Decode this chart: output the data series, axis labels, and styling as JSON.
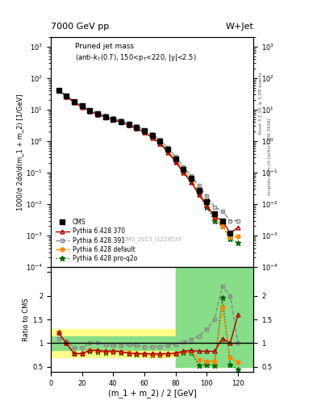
{
  "title_top": "7000 GeV pp",
  "title_top_right": "W+Jet",
  "inner_title": "Pruned jet mass",
  "inner_title2": "(anti-k_{T}(0.7), 150<p_{T}<220, |y|<2.5)",
  "xlabel": "(m_1 + m_2) / 2 [GeV]",
  "ylabel_main": "1000/σ 2dσ/d(m_1 + m_2) [1/GeV]",
  "ylabel_ratio": "Ratio to CMS",
  "watermark": "CMS_2013_I1224539",
  "rivet_label": "Rivet 3.1.10, ≥ 3.2M events",
  "arxiv_label": "mcplots.cern.ch [arXiv:1306.3436]",
  "cms_x": [
    5,
    10,
    15,
    20,
    25,
    30,
    35,
    40,
    45,
    50,
    55,
    60,
    65,
    70,
    75,
    80,
    85,
    90,
    95,
    100,
    105,
    110,
    115
  ],
  "cms_y": [
    42,
    27,
    18,
    13,
    9.5,
    7.5,
    6.0,
    5.0,
    4.2,
    3.5,
    2.8,
    2.1,
    1.5,
    1.0,
    0.55,
    0.28,
    0.13,
    0.065,
    0.028,
    0.012,
    0.005,
    0.003,
    0.0012
  ],
  "py370_x": [
    5,
    10,
    15,
    20,
    25,
    30,
    35,
    40,
    45,
    50,
    55,
    60,
    65,
    70,
    75,
    80,
    85,
    90,
    95,
    100,
    105,
    110,
    115,
    120
  ],
  "py370_y": [
    42,
    26,
    17,
    12,
    9.0,
    7.0,
    5.8,
    4.8,
    4.0,
    3.2,
    2.5,
    1.9,
    1.3,
    0.85,
    0.45,
    0.22,
    0.1,
    0.05,
    0.02,
    0.009,
    0.004,
    0.003,
    0.0012,
    0.0018
  ],
  "py391_x": [
    5,
    10,
    15,
    20,
    25,
    30,
    35,
    40,
    45,
    50,
    55,
    60,
    65,
    70,
    75,
    80,
    85,
    90,
    95,
    100,
    105,
    110,
    115,
    120
  ],
  "py391_y": [
    42,
    28,
    18.5,
    13.5,
    10.0,
    8.0,
    6.5,
    5.5,
    4.5,
    3.7,
    3.0,
    2.3,
    1.65,
    1.1,
    0.62,
    0.32,
    0.155,
    0.08,
    0.038,
    0.018,
    0.008,
    0.006,
    0.003,
    0.003
  ],
  "pydef_x": [
    5,
    10,
    15,
    20,
    25,
    30,
    35,
    40,
    45,
    50,
    55,
    60,
    65,
    70,
    75,
    80,
    85,
    90,
    95,
    100,
    105,
    110,
    115,
    120
  ],
  "pydef_y": [
    42,
    27,
    18,
    12.5,
    9.2,
    7.2,
    5.9,
    4.9,
    4.1,
    3.3,
    2.6,
    1.95,
    1.4,
    0.9,
    0.5,
    0.25,
    0.12,
    0.06,
    0.025,
    0.01,
    0.004,
    0.002,
    0.0009,
    0.00095
  ],
  "pyq2o_x": [
    5,
    10,
    15,
    20,
    25,
    30,
    35,
    40,
    45,
    50,
    55,
    60,
    65,
    70,
    75,
    80,
    85,
    90,
    95,
    100,
    105,
    110,
    115,
    120
  ],
  "pyq2o_y": [
    42,
    27,
    17.5,
    12.5,
    9.0,
    7.1,
    5.8,
    4.8,
    4.0,
    3.2,
    2.5,
    1.9,
    1.35,
    0.85,
    0.46,
    0.23,
    0.108,
    0.052,
    0.02,
    0.008,
    0.003,
    0.002,
    0.0008,
    0.0006
  ],
  "ratio370_x": [
    5,
    10,
    15,
    20,
    25,
    30,
    35,
    40,
    45,
    50,
    55,
    60,
    65,
    70,
    75,
    80,
    85,
    90,
    95,
    100,
    105,
    110,
    115,
    120
  ],
  "ratio370_y": [
    1.22,
    1.0,
    0.78,
    0.78,
    0.85,
    0.85,
    0.83,
    0.84,
    0.82,
    0.79,
    0.78,
    0.78,
    0.78,
    0.78,
    0.78,
    0.79,
    0.83,
    0.85,
    0.83,
    0.83,
    0.83,
    1.1,
    1.0,
    1.6
  ],
  "ratio391_x": [
    5,
    10,
    15,
    20,
    25,
    30,
    35,
    40,
    45,
    50,
    55,
    60,
    65,
    70,
    75,
    80,
    85,
    90,
    95,
    100,
    105,
    110,
    115,
    120
  ],
  "ratio391_y": [
    1.1,
    1.05,
    0.9,
    0.9,
    1.0,
    1.0,
    0.97,
    0.95,
    0.96,
    0.97,
    0.95,
    0.93,
    0.93,
    0.93,
    0.95,
    0.98,
    1.02,
    1.08,
    1.15,
    1.3,
    1.5,
    2.2,
    2.0,
    1.0
  ],
  "ratiodef_x": [
    5,
    10,
    15,
    20,
    25,
    30,
    35,
    40,
    45,
    50,
    55,
    60,
    65,
    70,
    75,
    80,
    85,
    90,
    95,
    100,
    105,
    110,
    115,
    120
  ],
  "ratiodef_y": [
    1.22,
    1.0,
    0.78,
    0.78,
    0.85,
    0.83,
    0.82,
    0.82,
    0.82,
    0.8,
    0.78,
    0.77,
    0.76,
    0.76,
    0.77,
    0.78,
    0.82,
    0.82,
    0.65,
    0.62,
    0.62,
    1.75,
    0.7,
    0.6
  ],
  "ratioq2o_x": [
    5,
    10,
    15,
    20,
    25,
    30,
    35,
    40,
    45,
    50,
    55,
    60,
    65,
    70,
    75,
    80,
    85,
    90,
    95,
    100,
    105,
    110,
    115,
    120
  ],
  "ratioq2o_y": [
    1.22,
    1.0,
    0.78,
    0.78,
    0.83,
    0.82,
    0.81,
    0.82,
    0.81,
    0.79,
    0.77,
    0.77,
    0.76,
    0.76,
    0.77,
    0.78,
    0.81,
    0.81,
    0.53,
    0.55,
    0.53,
    1.95,
    0.55,
    0.45
  ],
  "color_cms": "#000000",
  "color_py370": "#aa0000",
  "color_py391": "#888888",
  "color_pydef": "#ff8800",
  "color_pyq2o": "#006600",
  "ylim_main": [
    0.0001,
    2000
  ],
  "ylim_ratio": [
    0.4,
    2.6
  ],
  "xlim": [
    0,
    130
  ],
  "color_yellow": "#ffff88",
  "color_green": "#88dd88"
}
